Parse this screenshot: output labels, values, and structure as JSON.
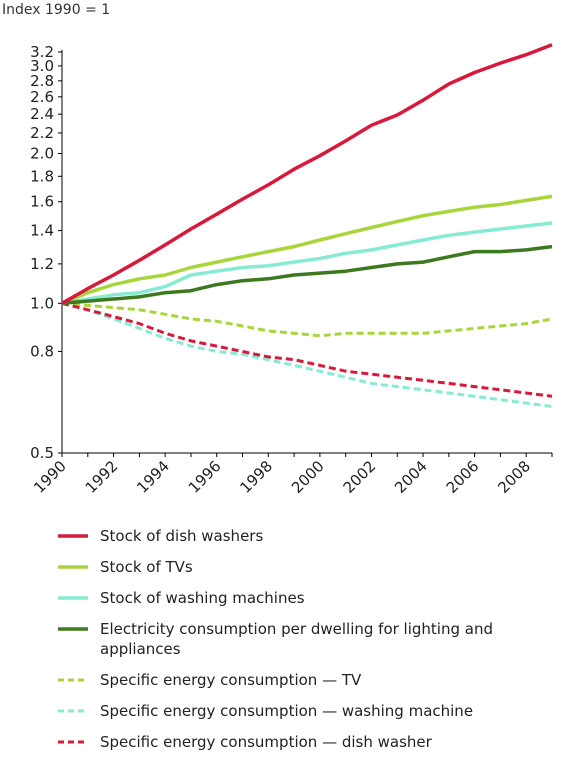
{
  "chart_data": {
    "type": "line",
    "ylabel": "Index 1990 = 1",
    "xlabel": "",
    "title": "",
    "x": [
      1990,
      1991,
      1992,
      1993,
      1994,
      1995,
      1996,
      1997,
      1998,
      1999,
      2000,
      2001,
      2002,
      2003,
      2004,
      2005,
      2006,
      2007,
      2008,
      2009
    ],
    "x_ticks": [
      "1990",
      "1992",
      "1994",
      "1996",
      "1998",
      "2000",
      "2002",
      "2004",
      "2006",
      "2008"
    ],
    "y_ticks": [
      "0.5",
      "0.8",
      "1.0",
      "1.2",
      "1.4",
      "1.6",
      "1.8",
      "2.0",
      "2.2",
      "2.4",
      "2.6",
      "2.8",
      "3.0",
      "3.2"
    ],
    "y_tick_values": [
      0.5,
      0.8,
      1.0,
      1.2,
      1.4,
      1.6,
      1.8,
      2.0,
      2.2,
      2.4,
      2.6,
      2.8,
      3.0,
      3.2
    ],
    "ylim": [
      0.5,
      3.2
    ],
    "y_scale": "log",
    "grid": false,
    "legend_position": "bottom",
    "series": [
      {
        "name": "Stock of dish washers",
        "color": "#d7193c",
        "style": "solid",
        "values": [
          1.0,
          1.07,
          1.14,
          1.22,
          1.31,
          1.41,
          1.51,
          1.62,
          1.73,
          1.86,
          1.98,
          2.12,
          2.28,
          2.39,
          2.56,
          2.76,
          2.91,
          3.04,
          3.16,
          3.31
        ]
      },
      {
        "name": "Stock of TVs",
        "color": "#a8d53c",
        "style": "solid",
        "values": [
          1.0,
          1.05,
          1.09,
          1.12,
          1.14,
          1.18,
          1.21,
          1.24,
          1.27,
          1.3,
          1.34,
          1.38,
          1.42,
          1.46,
          1.5,
          1.53,
          1.56,
          1.58,
          1.61,
          1.64
        ]
      },
      {
        "name": "Stock of washing machines",
        "color": "#86ebd2",
        "style": "solid",
        "values": [
          1.0,
          1.02,
          1.04,
          1.05,
          1.08,
          1.14,
          1.16,
          1.18,
          1.19,
          1.21,
          1.23,
          1.26,
          1.28,
          1.31,
          1.34,
          1.37,
          1.39,
          1.41,
          1.43,
          1.45
        ]
      },
      {
        "name": "Electricity consumption per dwelling for lighting and appliances",
        "color": "#3d7a1f",
        "style": "solid",
        "values": [
          1.0,
          1.01,
          1.02,
          1.03,
          1.05,
          1.06,
          1.09,
          1.11,
          1.12,
          1.14,
          1.15,
          1.16,
          1.18,
          1.2,
          1.21,
          1.24,
          1.27,
          1.27,
          1.28,
          1.3
        ]
      },
      {
        "name": "Specific energy consumption — TV",
        "color": "#a8d53c",
        "style": "dashed",
        "values": [
          1.0,
          0.99,
          0.98,
          0.97,
          0.95,
          0.93,
          0.92,
          0.9,
          0.88,
          0.87,
          0.86,
          0.87,
          0.87,
          0.87,
          0.87,
          0.88,
          0.89,
          0.9,
          0.91,
          0.93
        ]
      },
      {
        "name": "Specific energy consumption — washing machine",
        "color": "#86ebd2",
        "style": "dashed",
        "values": [
          1.0,
          0.97,
          0.93,
          0.89,
          0.85,
          0.82,
          0.8,
          0.79,
          0.77,
          0.75,
          0.73,
          0.71,
          0.69,
          0.68,
          0.67,
          0.66,
          0.65,
          0.64,
          0.63,
          0.62
        ]
      },
      {
        "name": "Specific energy consumption — dish washer",
        "color": "#d7193c",
        "style": "dashed",
        "values": [
          1.0,
          0.97,
          0.94,
          0.91,
          0.87,
          0.84,
          0.82,
          0.8,
          0.78,
          0.77,
          0.75,
          0.73,
          0.72,
          0.71,
          0.7,
          0.69,
          0.68,
          0.67,
          0.66,
          0.65
        ]
      }
    ]
  }
}
